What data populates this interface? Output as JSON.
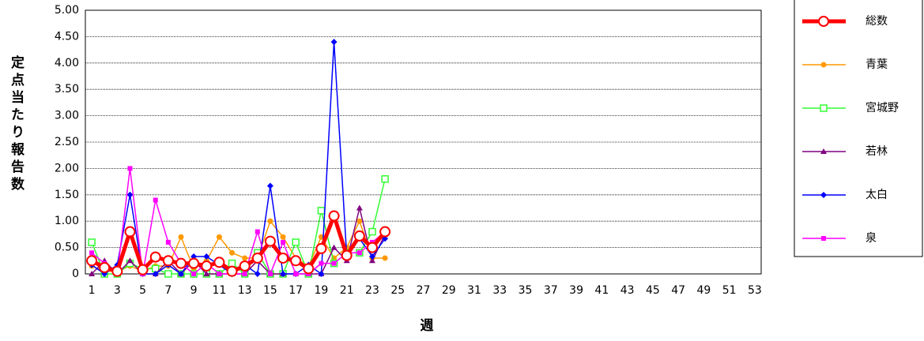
{
  "chart_data": {
    "type": "line",
    "y_label": "定点当たり報告数",
    "x_label": "週",
    "categories": [
      1,
      null,
      3,
      null,
      5,
      null,
      7,
      null,
      9,
      null,
      11,
      null,
      13,
      null,
      15,
      null,
      17,
      null,
      19,
      null,
      21,
      null,
      23,
      null,
      25,
      null,
      27,
      null,
      29,
      null,
      31,
      null,
      33,
      null,
      35,
      null,
      37,
      null,
      39,
      null,
      41,
      null,
      43,
      null,
      45,
      null,
      47,
      null,
      49,
      null,
      51,
      null,
      53
    ],
    "ylim": [
      0,
      5
    ],
    "yticks": [
      0,
      {
        "value": 0.5,
        "label": "0.50"
      },
      {
        "value": 1,
        "label": "1.00"
      },
      {
        "value": 1.5,
        "label": "1.50"
      },
      {
        "value": 2,
        "label": "2.00"
      },
      {
        "value": 2.5,
        "label": "2.50"
      },
      {
        "value": 3,
        "label": "3.00"
      },
      {
        "value": 3.5,
        "label": "3.50"
      },
      {
        "value": 4,
        "label": "4.00"
      },
      {
        "value": 4.5,
        "label": "4.50"
      },
      {
        "value": 5,
        "label": "5.00"
      }
    ],
    "grid": true,
    "legend": "right",
    "series": [
      {
        "name": "総数",
        "color": "#ff0000",
        "marker": "circle",
        "line_width": 5,
        "values": [
          0.25,
          0.12,
          0.05,
          0.8,
          0.08,
          0.32,
          0.25,
          0.2,
          0.2,
          0.15,
          0.22,
          0.05,
          0.15,
          0.3,
          0.62,
          0.3,
          0.25,
          0.1,
          0.48,
          1.1,
          0.35,
          0.72,
          0.5,
          0.8,
          null,
          null,
          null,
          null,
          null,
          null,
          null,
          null,
          null,
          null,
          null,
          null,
          null,
          null,
          null,
          null,
          null,
          null,
          null,
          null,
          null,
          null,
          null,
          null,
          null,
          null,
          null,
          null,
          null
        ]
      },
      {
        "name": "青葉",
        "color": "#ff9900",
        "marker": "dot",
        "line_width": 1.5,
        "values": [
          0.15,
          0.05,
          0.05,
          0.15,
          0.05,
          0.15,
          0.15,
          0.7,
          0.1,
          0.25,
          0.7,
          0.4,
          0.3,
          0.3,
          1.0,
          0.7,
          0.3,
          0.15,
          0.7,
          0.3,
          0.5,
          1.0,
          0.3,
          0.3,
          null,
          null,
          null,
          null,
          null,
          null,
          null,
          null,
          null,
          null,
          null,
          null,
          null,
          null,
          null,
          null,
          null,
          null,
          null,
          null,
          null,
          null,
          null,
          null,
          null,
          null,
          null,
          null,
          null
        ]
      },
      {
        "name": "宮城野",
        "color": "#33ff33",
        "marker": "open-square",
        "line_width": 1.5,
        "values": [
          0.6,
          0,
          0,
          0.2,
          0.1,
          0.1,
          0,
          0,
          0,
          0,
          0,
          0.2,
          0,
          0.4,
          0,
          0,
          0.6,
          0,
          1.2,
          0.2,
          0.4,
          0.4,
          0.8,
          1.8,
          null,
          null,
          null,
          null,
          null,
          null,
          null,
          null,
          null,
          null,
          null,
          null,
          null,
          null,
          null,
          null,
          null,
          null,
          null,
          null,
          null,
          null,
          null,
          null,
          null,
          null,
          null,
          null,
          null
        ]
      },
      {
        "name": "若林",
        "color": "#800080",
        "marker": "triangle",
        "line_width": 1.5,
        "values": [
          0,
          0.25,
          0,
          0.25,
          0,
          0,
          0.25,
          0,
          0.25,
          0,
          0,
          0,
          0,
          0.25,
          0,
          0,
          0,
          0,
          0,
          0.5,
          0.25,
          1.25,
          0.25,
          0.75,
          null,
          null,
          null,
          null,
          null,
          null,
          null,
          null,
          null,
          null,
          null,
          null,
          null,
          null,
          null,
          null,
          null,
          null,
          null,
          null,
          null,
          null,
          null,
          null,
          null,
          null,
          null,
          null,
          null
        ]
      },
      {
        "name": "太白",
        "color": "#0000ff",
        "marker": "diamond",
        "line_width": 1.5,
        "values": [
          0.17,
          0,
          0.17,
          1.5,
          0,
          0,
          0.17,
          0,
          0.33,
          0.33,
          0.17,
          0,
          0.17,
          0,
          1.67,
          0,
          0,
          0.17,
          0,
          4.4,
          0.33,
          0.67,
          0.33,
          0.67,
          null,
          null,
          null,
          null,
          null,
          null,
          null,
          null,
          null,
          null,
          null,
          null,
          null,
          null,
          null,
          null,
          null,
          null,
          null,
          null,
          null,
          null,
          null,
          null,
          null,
          null,
          null,
          null,
          null
        ]
      },
      {
        "name": "泉",
        "color": "#ff00ff",
        "marker": "square",
        "line_width": 1.5,
        "values": [
          0.4,
          0.2,
          0,
          2.0,
          0,
          1.4,
          0.6,
          0.2,
          0,
          0.2,
          0,
          0,
          0,
          0.8,
          0,
          0.6,
          0,
          0,
          0.2,
          0.2,
          0.4,
          0.4,
          0.6,
          0.8,
          null,
          null,
          null,
          null,
          null,
          null,
          null,
          null,
          null,
          null,
          null,
          null,
          null,
          null,
          null,
          null,
          null,
          null,
          null,
          null,
          null,
          null,
          null,
          null,
          null,
          null,
          null,
          null,
          null
        ]
      }
    ]
  }
}
